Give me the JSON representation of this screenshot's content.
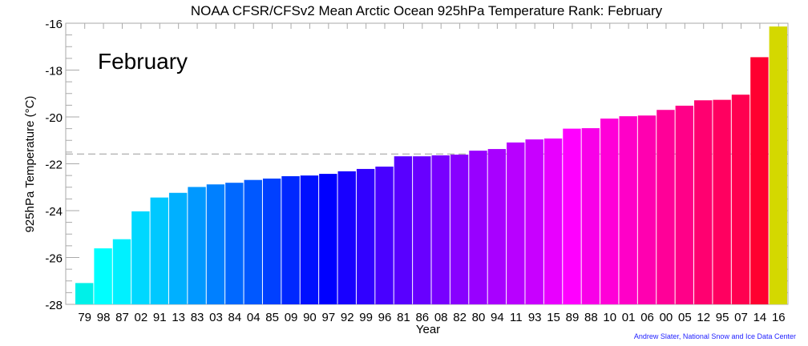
{
  "chart_data": {
    "type": "bar",
    "title": "NOAA CFSR/CFSv2 Mean Arctic Ocean 925hPa Temperature Rank: February",
    "annotation": "February",
    "xlabel": "Year",
    "ylabel": "925hPa Temperature (°C)",
    "ylim": [
      -28,
      -16
    ],
    "yticks": [
      "-16",
      "-18",
      "-20",
      "-22",
      "-24",
      "-26",
      "-28"
    ],
    "grid": false,
    "reference_line": {
      "style": "dashed",
      "value": -21.58
    },
    "categories": [
      "79",
      "98",
      "87",
      "02",
      "91",
      "13",
      "83",
      "03",
      "84",
      "04",
      "85",
      "09",
      "90",
      "97",
      "92",
      "99",
      "96",
      "81",
      "86",
      "08",
      "82",
      "80",
      "94",
      "11",
      "93",
      "15",
      "89",
      "88",
      "10",
      "01",
      "06",
      "00",
      "05",
      "12",
      "95",
      "07",
      "14",
      "16"
    ],
    "values": [
      -27.09,
      -25.61,
      -25.22,
      -24.03,
      -23.44,
      -23.24,
      -22.99,
      -22.88,
      -22.81,
      -22.69,
      -22.63,
      -22.53,
      -22.5,
      -22.43,
      -22.32,
      -22.22,
      -22.12,
      -21.68,
      -21.68,
      -21.64,
      -21.61,
      -21.44,
      -21.37,
      -21.09,
      -20.96,
      -20.92,
      -20.5,
      -20.48,
      -20.07,
      -19.97,
      -19.94,
      -19.7,
      -19.52,
      -19.29,
      -19.27,
      -19.05,
      -17.45,
      -16.14
    ],
    "colors": [
      "#00f0e8",
      "#00ffff",
      "#00f0ff",
      "#00d8ff",
      "#00c8ff",
      "#00b0ff",
      "#0098ff",
      "#0080ff",
      "#0068ff",
      "#0058ff",
      "#0040ff",
      "#0028ff",
      "#0010ff",
      "#0000ff",
      "#1800ff",
      "#3000ff",
      "#4800ff",
      "#5800ff",
      "#6800ff",
      "#7800ff",
      "#8800ff",
      "#9800ff",
      "#a800ff",
      "#b800ff",
      "#c800ff",
      "#e800ff",
      "#ff00ff",
      "#f800e8",
      "#ff00d8",
      "#ff00c8",
      "#ff00b0",
      "#ff0098",
      "#ff0088",
      "#ff0070",
      "#ff0060",
      "#ff0050",
      "#ff0030",
      "#d4d800"
    ]
  },
  "credit": "Andrew Slater, National Snow and Ice Data Center",
  "credit_color": "#2222ff"
}
